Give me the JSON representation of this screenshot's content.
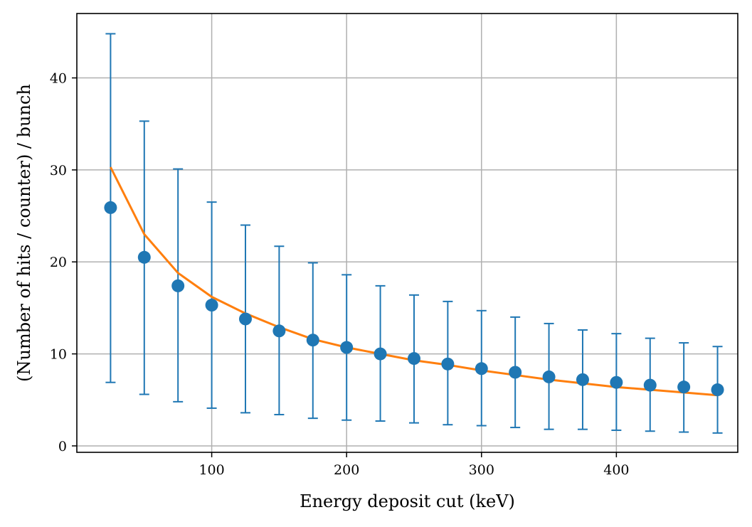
{
  "chart_data": {
    "type": "scatter",
    "xlabel": "Energy deposit cut (keV)",
    "ylabel": "(Number of hits / counter) / bunch",
    "xlim": [
      0,
      490
    ],
    "ylim": [
      -0.7,
      47
    ],
    "grid": true,
    "xticks": [
      100,
      200,
      300,
      400
    ],
    "yticks": [
      0,
      10,
      20,
      30,
      40
    ],
    "colors": {
      "points": "#1f77b4",
      "fit": "#ff7f0e",
      "grid": "#b0b0b0"
    },
    "series": [
      {
        "kind": "errorbar",
        "x": [
          25,
          50,
          75,
          100,
          125,
          150,
          175,
          200,
          225,
          250,
          275,
          300,
          325,
          350,
          375,
          400,
          425,
          450,
          475
        ],
        "y": [
          25.9,
          20.5,
          17.4,
          15.3,
          13.8,
          12.5,
          11.5,
          10.7,
          10.0,
          9.5,
          8.9,
          8.4,
          8.0,
          7.5,
          7.2,
          6.9,
          6.6,
          6.4,
          6.1
        ],
        "y_upper": [
          44.8,
          35.3,
          30.1,
          26.5,
          24.0,
          21.7,
          19.9,
          18.6,
          17.4,
          16.4,
          15.7,
          14.7,
          14.0,
          13.3,
          12.6,
          12.2,
          11.7,
          11.2,
          10.8
        ],
        "y_lower": [
          6.9,
          5.6,
          4.8,
          4.1,
          3.6,
          3.4,
          3.0,
          2.8,
          2.7,
          2.5,
          2.3,
          2.2,
          2.0,
          1.8,
          1.8,
          1.7,
          1.6,
          1.5,
          1.4
        ]
      },
      {
        "kind": "line",
        "x": [
          25,
          50,
          75,
          100,
          125,
          150,
          175,
          200,
          225,
          250,
          275,
          300,
          325,
          350,
          375,
          400,
          425,
          450,
          475
        ],
        "y": [
          30.3,
          23.0,
          18.8,
          16.2,
          14.4,
          12.9,
          11.6,
          10.7,
          10.0,
          9.3,
          8.8,
          8.2,
          7.7,
          7.2,
          6.8,
          6.4,
          6.1,
          5.8,
          5.5
        ]
      }
    ]
  }
}
